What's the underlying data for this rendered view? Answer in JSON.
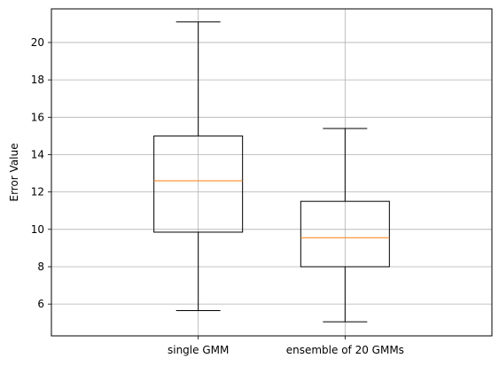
{
  "chart_data": {
    "type": "boxplot",
    "title": "",
    "xlabel": "",
    "ylabel": "Error Value",
    "ylim": [
      4.3,
      21.8
    ],
    "yticks": [
      6,
      8,
      10,
      12,
      14,
      16,
      18,
      20
    ],
    "grid": true,
    "categories": [
      "single GMM",
      "ensemble of 20 GMMs"
    ],
    "boxes": [
      {
        "label": "single GMM",
        "whisker_low": 5.65,
        "q1": 9.85,
        "median": 12.6,
        "q3": 15.0,
        "whisker_high": 21.1
      },
      {
        "label": "ensemble of 20 GMMs",
        "whisker_low": 5.05,
        "q1": 8.0,
        "median": 9.55,
        "q3": 11.5,
        "whisker_high": 15.4
      }
    ],
    "colors": {
      "box": "#000000",
      "median": "#ff7f0e",
      "grid": "#b0b0b0"
    }
  }
}
